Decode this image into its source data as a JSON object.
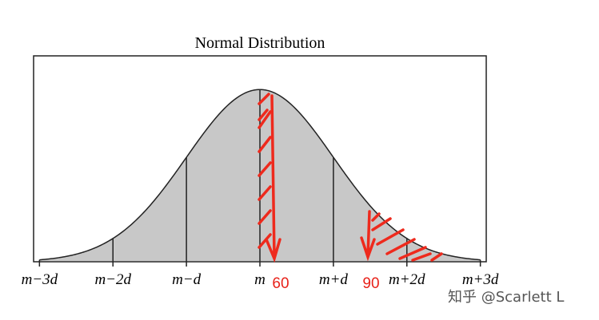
{
  "chart_data": {
    "type": "normal",
    "title": "Normal Distribution",
    "xlim": [
      -3.08,
      3.08
    ],
    "ylim": [
      0,
      0.477
    ],
    "xticks": [
      {
        "value": -3,
        "label": "m−3d"
      },
      {
        "value": -2,
        "label": "m−2d"
      },
      {
        "value": -1,
        "label": "m−d"
      },
      {
        "value": 0,
        "label": "m"
      },
      {
        "value": 1,
        "label": "m+d"
      },
      {
        "value": 2,
        "label": "m+2d"
      },
      {
        "value": 3,
        "label": "m+3d"
      }
    ],
    "fill": "#c8c8c8",
    "annotations": [
      "60",
      "90"
    ]
  },
  "watermark": "知乎 @Scarlett L"
}
